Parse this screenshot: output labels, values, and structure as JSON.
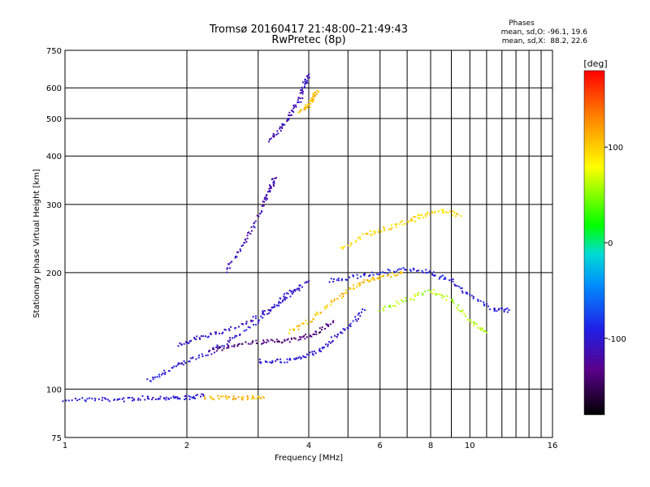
{
  "chart_data": {
    "type": "scatter",
    "title": "Tromsø 20160417 21:48:00–21:49:43",
    "subtitle": "RwPretec (8p)",
    "xlabel": "Frequency [MHz]",
    "ylabel": "Stationary phase Virtual Height [km]",
    "x_scale": "log",
    "y_scale": "log",
    "xlim": [
      1,
      16
    ],
    "ylim": [
      75,
      750
    ],
    "x_ticks": [
      1,
      2,
      4,
      6,
      8,
      10,
      16
    ],
    "x_minor_ticks": [
      3,
      5,
      7,
      9,
      11,
      12,
      13,
      14,
      15
    ],
    "y_ticks": [
      75,
      100,
      200,
      300,
      400,
      500,
      600,
      750
    ],
    "grid": true,
    "colorbar": {
      "label": "[deg]",
      "range": [
        -180,
        180
      ],
      "ticks": [
        100,
        0,
        -100
      ]
    },
    "stats": {
      "header": "Phases",
      "line_o": "mean, sd,O: -96.1, 19.6",
      "line_x": "mean, sd,X:  88.2, 22.6"
    },
    "series": [
      {
        "points": [
          [
            1.0,
            94
          ],
          [
            1.2,
            94
          ],
          [
            1.4,
            94
          ],
          [
            1.6,
            95
          ],
          [
            1.8,
            95
          ],
          [
            2.0,
            95
          ],
          [
            2.2,
            96
          ]
        ],
        "color_value": -100
      },
      {
        "points": [
          [
            1.6,
            105
          ],
          [
            1.8,
            112
          ],
          [
            2.0,
            118
          ],
          [
            2.3,
            125
          ],
          [
            2.6,
            135
          ],
          [
            3.0,
            150
          ],
          [
            3.4,
            170
          ],
          [
            3.8,
            185
          ]
        ],
        "color_value": -100
      },
      {
        "points": [
          [
            1.9,
            130
          ],
          [
            2.1,
            135
          ],
          [
            2.4,
            140
          ],
          [
            2.8,
            148
          ],
          [
            3.2,
            160
          ],
          [
            3.6,
            175
          ],
          [
            4.0,
            190
          ]
        ],
        "color_value": -105
      },
      {
        "points": [
          [
            2.3,
            125
          ],
          [
            2.6,
            130
          ],
          [
            3.0,
            132
          ],
          [
            3.4,
            133
          ],
          [
            3.8,
            135
          ],
          [
            4.2,
            140
          ],
          [
            4.6,
            150
          ]
        ],
        "color_value": -135
      },
      {
        "points": [
          [
            3.0,
            118
          ],
          [
            3.4,
            118
          ],
          [
            3.8,
            120
          ],
          [
            4.2,
            125
          ],
          [
            4.6,
            135
          ],
          [
            5.0,
            145
          ],
          [
            5.5,
            160
          ]
        ],
        "color_value": -100
      },
      {
        "points": [
          [
            2.2,
            95
          ],
          [
            2.5,
            95
          ],
          [
            2.8,
            95
          ],
          [
            3.1,
            95
          ]
        ],
        "color_value": 110
      },
      {
        "points": [
          [
            3.6,
            140
          ],
          [
            4.0,
            150
          ],
          [
            4.5,
            165
          ],
          [
            5.0,
            180
          ],
          [
            5.5,
            190
          ],
          [
            6.0,
            195
          ],
          [
            6.8,
            200
          ]
        ],
        "color_value": 105
      },
      {
        "points": [
          [
            2.5,
            200
          ],
          [
            2.7,
            230
          ],
          [
            2.9,
            260
          ],
          [
            3.1,
            300
          ],
          [
            3.2,
            330
          ],
          [
            3.3,
            350
          ]
        ],
        "color_value": -115
      },
      {
        "points": [
          [
            3.2,
            440
          ],
          [
            3.4,
            470
          ],
          [
            3.6,
            510
          ],
          [
            3.8,
            560
          ],
          [
            3.9,
            610
          ],
          [
            4.0,
            650
          ]
        ],
        "color_value": -110
      },
      {
        "points": [
          [
            3.8,
            520
          ],
          [
            4.0,
            540
          ],
          [
            4.1,
            560
          ],
          [
            4.2,
            590
          ]
        ],
        "color_value": 105
      },
      {
        "points": [
          [
            4.5,
            190
          ],
          [
            5.2,
            195
          ],
          [
            6.0,
            200
          ],
          [
            7.0,
            205
          ],
          [
            8.0,
            200
          ],
          [
            9.0,
            190
          ],
          [
            10.0,
            175
          ],
          [
            11.5,
            160
          ],
          [
            12.5,
            160
          ]
        ],
        "color_value": -95
      },
      {
        "points": [
          [
            4.8,
            230
          ],
          [
            5.5,
            250
          ],
          [
            6.2,
            260
          ],
          [
            7.0,
            270
          ],
          [
            7.6,
            280
          ],
          [
            8.5,
            290
          ],
          [
            9.5,
            280
          ]
        ],
        "color_value": 95
      },
      {
        "points": [
          [
            6.0,
            160
          ],
          [
            7.0,
            170
          ],
          [
            8.0,
            180
          ],
          [
            9.0,
            170
          ],
          [
            10.0,
            150
          ],
          [
            11.0,
            140
          ]
        ],
        "color_value": 60
      }
    ]
  }
}
